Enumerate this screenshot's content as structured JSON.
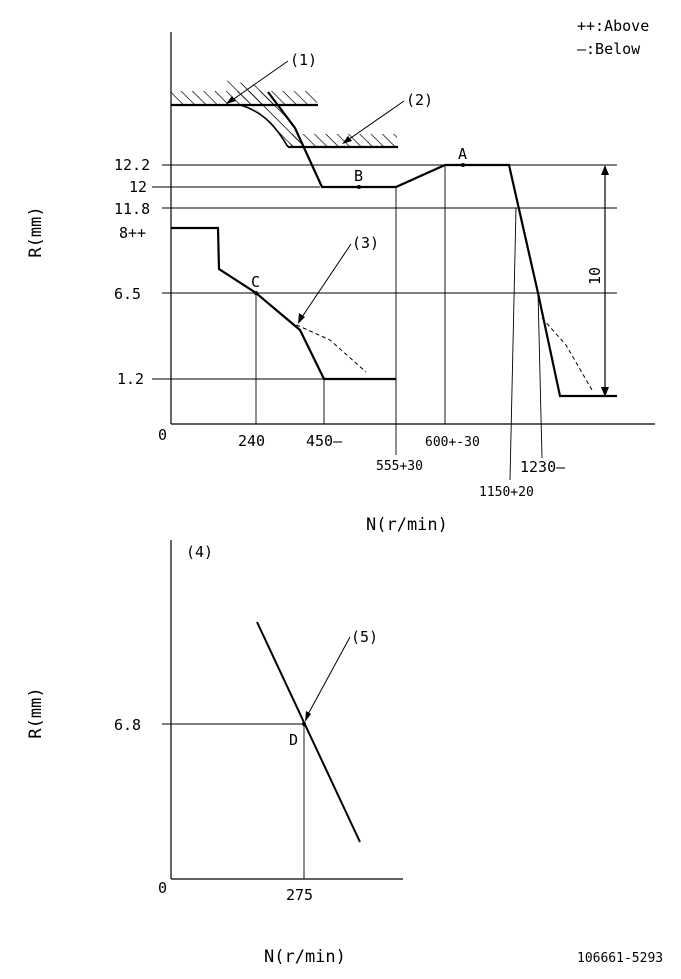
{
  "legend": {
    "above": "++:Above",
    "below": "—:Below"
  },
  "top_chart": {
    "y_axis_label": "R(mm)",
    "x_axis_label": "N(r/min)",
    "origin": "0",
    "y_ticks": [
      "12.2",
      "12",
      "11.8",
      "8++",
      "6.5",
      "1.2"
    ],
    "x_ticks": [
      "240",
      "450—",
      "555+30",
      "600+-30",
      "1150+20",
      "1230—"
    ],
    "points": [
      "A",
      "B",
      "C"
    ],
    "callouts": [
      "(1)",
      "(2)",
      "(3)"
    ],
    "dimension": "10"
  },
  "bottom_chart": {
    "title": "(4)",
    "y_axis_label": "R(mm)",
    "x_axis_label": "N(r/min)",
    "origin": "0",
    "y_tick": "6.8",
    "x_tick": "275",
    "point": "D",
    "callout": "(5)"
  },
  "drawing_number": "106661-5293"
}
